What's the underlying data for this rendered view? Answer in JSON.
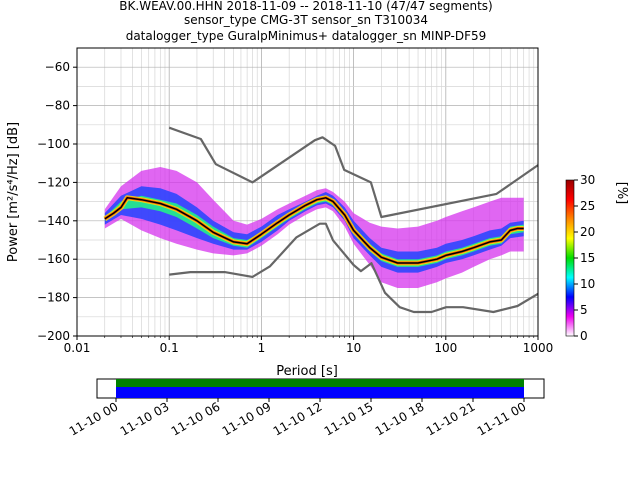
{
  "chart_data": {
    "type": "heatmap",
    "title_lines": [
      "BK.WEAV.00.HHN   2018-11-09 -- 2018-11-10  (47/47 segments)",
      "sensor_type CMG-3T sensor_sn T310034",
      "datalogger_type GuralpMinimus+ datalogger_sn MINP-DF59"
    ],
    "xlabel": "Period [s]",
    "ylabel": "Power [m²/s⁴/Hz] [dB]",
    "x_scale": "log",
    "xlim": [
      0.01,
      1000
    ],
    "ylim": [
      -200,
      -50
    ],
    "grid": true,
    "x_ticks": [
      {
        "value": 0.01,
        "label": "0.01"
      },
      {
        "value": 0.1,
        "label": "0.1"
      },
      {
        "value": 1,
        "label": "1"
      },
      {
        "value": 10,
        "label": "10"
      },
      {
        "value": 100,
        "label": "100"
      },
      {
        "value": 1000,
        "label": "1000"
      }
    ],
    "y_ticks": [
      {
        "value": -60,
        "label": "−60"
      },
      {
        "value": -80,
        "label": "−80"
      },
      {
        "value": -100,
        "label": "−100"
      },
      {
        "value": -120,
        "label": "−120"
      },
      {
        "value": -140,
        "label": "−140"
      },
      {
        "value": -160,
        "label": "−160"
      },
      {
        "value": -180,
        "label": "−180"
      },
      {
        "value": -200,
        "label": "−200"
      }
    ],
    "colorbar": {
      "label": "[%]",
      "range": [
        0,
        30
      ],
      "ticks": [
        "0",
        "5",
        "10",
        "15",
        "20",
        "25",
        "30"
      ],
      "colors": [
        "#ffffff",
        "#ee00ee",
        "#0000ff",
        "#00ffff",
        "#00dd00",
        "#ffff00",
        "#ff8800",
        "#ff0000",
        "#990000"
      ]
    },
    "series": [
      {
        "role": "noise-model-high",
        "color": "#666666",
        "x": [
          0.1,
          0.22,
          0.32,
          0.8,
          3.8,
          4.6,
          6.3,
          7.9,
          15.4,
          20,
          354.8,
          1000
        ],
        "y": [
          -91.5,
          -97.4,
          -110.5,
          -120,
          -98,
          -96.5,
          -101,
          -113.5,
          -120,
          -138,
          -126,
          -111
        ]
      },
      {
        "role": "noise-model-low",
        "color": "#666666",
        "x": [
          0.1,
          0.17,
          0.4,
          0.8,
          1.24,
          2.4,
          4.3,
          5.0,
          6.0,
          10.0,
          12.0,
          15.6,
          21.9,
          31.6,
          45.0,
          70.0,
          101.0,
          154.0,
          328.0,
          600.0,
          1000.0
        ],
        "y": [
          -168,
          -166.7,
          -166.7,
          -169.2,
          -163.7,
          -148.6,
          -141.5,
          -141.5,
          -150.2,
          -163.0,
          -166.2,
          -162.1,
          -177.5,
          -185.0,
          -187.5,
          -187.5,
          -185.0,
          -185.0,
          -187.5,
          -184.4,
          -178.0
        ]
      },
      {
        "role": "mean",
        "color": "#000000",
        "x": [
          0.02,
          0.025,
          0.03,
          0.035,
          0.05,
          0.08,
          0.12,
          0.2,
          0.3,
          0.5,
          0.7,
          1.0,
          1.5,
          2.0,
          3.0,
          4.0,
          5.0,
          6.0,
          8.0,
          10.0,
          15.0,
          20.0,
          30.0,
          50.0,
          80.0,
          100.0,
          150.0,
          200.0,
          300.0,
          400.0,
          500.0,
          600.0,
          700.0
        ],
        "y": [
          -139,
          -136,
          -133,
          -128,
          -129,
          -131,
          -134,
          -140,
          -146,
          -151,
          -152,
          -147,
          -141,
          -137,
          -132,
          -129,
          -128,
          -130,
          -137,
          -145,
          -154,
          -159,
          -162,
          -162,
          -160,
          -158,
          -156,
          -154,
          -151,
          -150,
          -145,
          -144,
          -144
        ]
      }
    ],
    "density_bands": [
      {
        "x": [
          0.02,
          0.03,
          0.05,
          0.08,
          0.12,
          0.2,
          0.3,
          0.5,
          0.7,
          1.0,
          1.5,
          2.0,
          3.0,
          4.0,
          5.0,
          6.0,
          8.0,
          10.0,
          15.0,
          20.0,
          30.0,
          50.0,
          80.0,
          100.0,
          150.0,
          200.0,
          300.0,
          400.0,
          500.0,
          700.0
        ],
        "upper": [
          -134,
          -122,
          -114,
          -112,
          -114,
          -120,
          -129,
          -140,
          -142,
          -139,
          -134,
          -131,
          -127,
          -124,
          -123,
          -125,
          -130,
          -136,
          -141,
          -143,
          -144,
          -143,
          -140,
          -138,
          -135,
          -133,
          -130,
          -128,
          -128,
          -128
        ],
        "lower": [
          -144,
          -139,
          -145,
          -149,
          -152,
          -155,
          -157,
          -158,
          -157,
          -153,
          -147,
          -142,
          -137,
          -134,
          -133,
          -135,
          -143,
          -152,
          -163,
          -172,
          -175,
          -175,
          -172,
          -170,
          -167,
          -164,
          -160,
          -158,
          -156,
          -156
        ],
        "level": "low"
      },
      {
        "x": [
          0.02,
          0.03,
          0.05,
          0.08,
          0.12,
          0.2,
          0.3,
          0.5,
          0.7,
          1.0,
          1.5,
          2.0,
          3.0,
          4.0,
          5.0,
          6.0,
          8.0,
          10.0,
          15.0,
          20.0,
          30.0,
          50.0,
          80.0,
          100.0,
          150.0,
          200.0,
          300.0,
          400.0,
          500.0,
          700.0
        ],
        "upper": [
          -136,
          -127,
          -122,
          -123,
          -126,
          -133,
          -140,
          -146,
          -147,
          -143,
          -137,
          -134,
          -130,
          -127,
          -125,
          -127,
          -133,
          -140,
          -149,
          -154,
          -156,
          -156,
          -154,
          -152,
          -150,
          -148,
          -145,
          -144,
          -141,
          -140
        ],
        "lower": [
          -142,
          -137,
          -139,
          -142,
          -145,
          -149,
          -152,
          -155,
          -155,
          -151,
          -145,
          -140,
          -135,
          -132,
          -131,
          -133,
          -140,
          -149,
          -158,
          -164,
          -167,
          -167,
          -164,
          -162,
          -160,
          -158,
          -155,
          -153,
          -149,
          -148
        ],
        "level": "mid"
      },
      {
        "x": [
          0.02,
          0.03,
          0.05,
          0.08,
          0.12,
          0.2,
          0.3,
          0.5,
          0.7,
          1.0,
          1.5,
          2.0,
          3.0,
          4.0,
          5.0,
          6.0,
          8.0,
          10.0,
          15.0,
          20.0,
          30.0,
          50.0,
          80.0,
          100.0,
          150.0,
          200.0,
          300.0,
          400.0,
          500.0,
          700.0
        ],
        "upper": [
          -138,
          -130,
          -127,
          -129,
          -131,
          -137,
          -143,
          -149,
          -150,
          -146,
          -140,
          -136,
          -131,
          -128,
          -127,
          -129,
          -135,
          -143,
          -152,
          -157,
          -160,
          -160,
          -158,
          -156,
          -154,
          -152,
          -149,
          -148,
          -143,
          -142
        ],
        "lower": [
          -140,
          -134,
          -133,
          -135,
          -138,
          -144,
          -149,
          -153,
          -154,
          -149,
          -143,
          -139,
          -134,
          -131,
          -130,
          -132,
          -139,
          -147,
          -156,
          -161,
          -164,
          -164,
          -162,
          -160,
          -158,
          -156,
          -153,
          -152,
          -147,
          -146
        ],
        "level": "high"
      }
    ],
    "timeline": {
      "tick_labels": [
        "11-10 00",
        "11-10 03",
        "11-10 06",
        "11-10 09",
        "11-10 12",
        "11-10 15",
        "11-10 18",
        "11-10 21",
        "11-11 00"
      ],
      "bar_colors": [
        "#008000",
        "#0000ff"
      ]
    }
  }
}
